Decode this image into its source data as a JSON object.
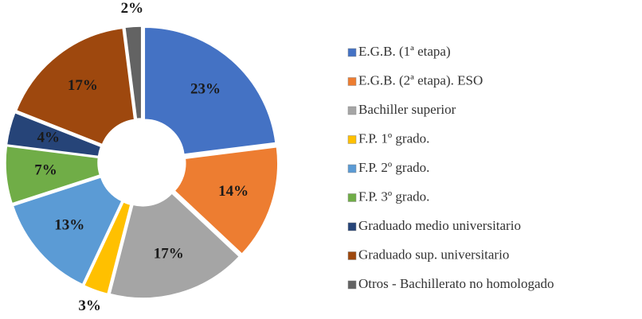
{
  "chart_data": {
    "type": "pie",
    "categories": [
      "E.G.B. (1ª etapa)",
      "E.G.B. (2ª etapa). ESO",
      "Bachiller superior",
      "F.P. 1º grado.",
      "F.P. 2º grado.",
      "F.P. 3º grado.",
      "Graduado medio universitario",
      "Graduado sup. universitario",
      "Otros - Bachillerato no homologado"
    ],
    "values": [
      23,
      14,
      17,
      3,
      13,
      7,
      4,
      17,
      2
    ],
    "value_labels": [
      "23%",
      "14%",
      "17%",
      "3%",
      "13%",
      "7%",
      "4%",
      "17%",
      "2%"
    ],
    "colors": [
      "#4472c4",
      "#ed7d31",
      "#a5a5a5",
      "#ffc000",
      "#5b9bd5",
      "#70ad47",
      "#264478",
      "#9e480e",
      "#636363"
    ],
    "legend": "right"
  }
}
